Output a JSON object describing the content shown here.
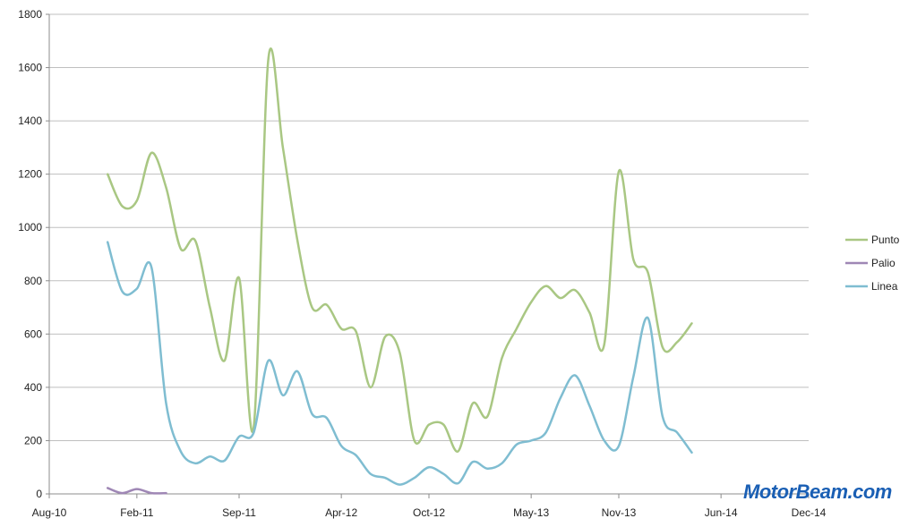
{
  "chart_data": {
    "type": "line",
    "title": "",
    "xlabel": "",
    "ylabel": "",
    "ylim": [
      0,
      1800
    ],
    "y_ticks": [
      0,
      200,
      400,
      600,
      800,
      1000,
      1200,
      1400,
      1600,
      1800
    ],
    "x_ticks": [
      "Aug-10",
      "Feb-11",
      "Sep-11",
      "Apr-12",
      "Oct-12",
      "May-13",
      "Nov-13",
      "Jun-14",
      "Dec-14"
    ],
    "grid": "horizontal",
    "legend": "right",
    "series": [
      {
        "name": "Punto",
        "color": "#a9c783",
        "points": [
          [
            "Dec-10",
            1200
          ],
          [
            "Jan-11",
            1080
          ],
          [
            "Feb-11",
            1100
          ],
          [
            "Mar-11",
            1280
          ],
          [
            "Apr-11",
            1150
          ],
          [
            "May-11",
            920
          ],
          [
            "Jun-11",
            950
          ],
          [
            "Jul-11",
            700
          ],
          [
            "Aug-11",
            500
          ],
          [
            "Sep-11",
            810
          ],
          [
            "Oct-11",
            250
          ],
          [
            "Nov-11",
            1630
          ],
          [
            "Dec-11",
            1300
          ],
          [
            "Jan-12",
            950
          ],
          [
            "Feb-12",
            700
          ],
          [
            "Mar-12",
            710
          ],
          [
            "Apr-12",
            620
          ],
          [
            "May-12",
            610
          ],
          [
            "Jun-12",
            400
          ],
          [
            "Jul-12",
            590
          ],
          [
            "Aug-12",
            530
          ],
          [
            "Sep-12",
            200
          ],
          [
            "Oct-12",
            260
          ],
          [
            "Nov-12",
            260
          ],
          [
            "Dec-12",
            160
          ],
          [
            "Jan-13",
            340
          ],
          [
            "Feb-13",
            290
          ],
          [
            "Mar-13",
            510
          ],
          [
            "Apr-13",
            620
          ],
          [
            "May-13",
            720
          ],
          [
            "Jun-13",
            780
          ],
          [
            "Jul-13",
            735
          ],
          [
            "Aug-13",
            765
          ],
          [
            "Sep-13",
            680
          ],
          [
            "Oct-13",
            560
          ],
          [
            "Nov-13",
            1210
          ],
          [
            "Dec-13",
            880
          ],
          [
            "Jan-14",
            830
          ],
          [
            "Feb-14",
            550
          ],
          [
            "Mar-14",
            570
          ],
          [
            "Apr-14",
            640
          ]
        ]
      },
      {
        "name": "Palio",
        "color": "#9f87b5",
        "points": [
          [
            "Dec-10",
            22
          ],
          [
            "Jan-11",
            3
          ],
          [
            "Feb-11",
            18
          ],
          [
            "Mar-11",
            3
          ],
          [
            "Apr-11",
            3
          ]
        ]
      },
      {
        "name": "Linea",
        "color": "#7fbdd1",
        "points": [
          [
            "Dec-10",
            945
          ],
          [
            "Jan-11",
            760
          ],
          [
            "Feb-11",
            770
          ],
          [
            "Mar-11",
            850
          ],
          [
            "Apr-11",
            340
          ],
          [
            "May-11",
            160
          ],
          [
            "Jun-11",
            115
          ],
          [
            "Jul-11",
            140
          ],
          [
            "Aug-11",
            125
          ],
          [
            "Sep-11",
            215
          ],
          [
            "Oct-11",
            230
          ],
          [
            "Nov-11",
            500
          ],
          [
            "Dec-11",
            370
          ],
          [
            "Jan-12",
            460
          ],
          [
            "Feb-12",
            300
          ],
          [
            "Mar-12",
            285
          ],
          [
            "Apr-12",
            180
          ],
          [
            "May-12",
            145
          ],
          [
            "Jun-12",
            75
          ],
          [
            "Jul-12",
            60
          ],
          [
            "Aug-12",
            35
          ],
          [
            "Sep-12",
            60
          ],
          [
            "Oct-12",
            100
          ],
          [
            "Nov-12",
            75
          ],
          [
            "Dec-12",
            40
          ],
          [
            "Jan-13",
            120
          ],
          [
            "Feb-13",
            95
          ],
          [
            "Mar-13",
            115
          ],
          [
            "Apr-13",
            185
          ],
          [
            "May-13",
            200
          ],
          [
            "Jun-13",
            230
          ],
          [
            "Jul-13",
            360
          ],
          [
            "Aug-13",
            445
          ],
          [
            "Sep-13",
            330
          ],
          [
            "Oct-13",
            200
          ],
          [
            "Nov-13",
            180
          ],
          [
            "Dec-13",
            440
          ],
          [
            "Jan-14",
            660
          ],
          [
            "Feb-14",
            290
          ],
          [
            "Mar-14",
            230
          ],
          [
            "Apr-14",
            155
          ]
        ]
      }
    ]
  },
  "watermark": {
    "text": "MotorBeam.com",
    "color": "#1a5fb4"
  }
}
